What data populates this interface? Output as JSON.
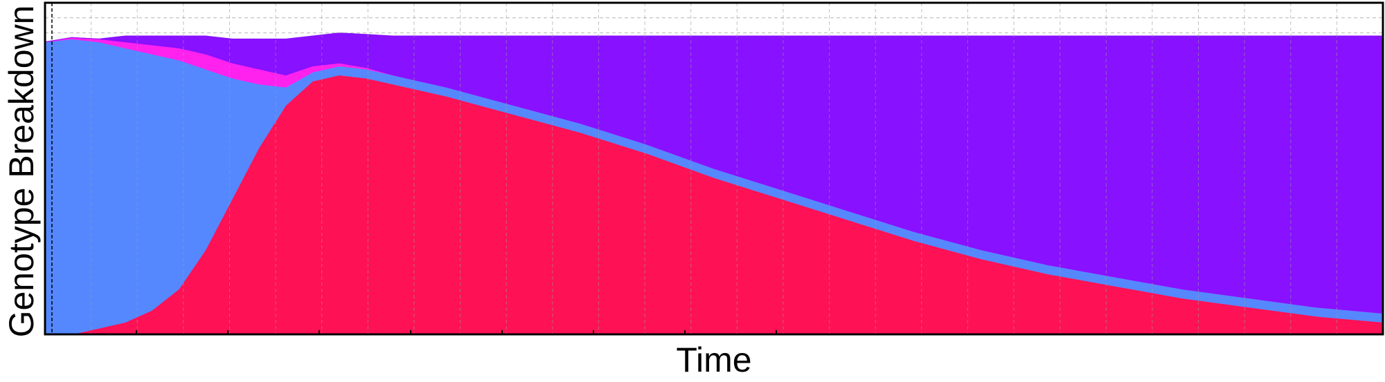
{
  "chart_data": {
    "type": "area",
    "stacked": true,
    "title": "",
    "xlabel": "Time",
    "ylabel": "Genotype Breakdown",
    "x_tick_labels_shown": false,
    "y_tick_labels_shown": false,
    "grid": true,
    "grid_style": "dashed",
    "legend": "none",
    "xlim": [
      0,
      100
    ],
    "ylim": [
      0,
      1.1
    ],
    "x": [
      0,
      2,
      4,
      6,
      8,
      10,
      12,
      14,
      16,
      18,
      20,
      22,
      24,
      26,
      28,
      30,
      35,
      40,
      45,
      50,
      55,
      60,
      65,
      70,
      75,
      80,
      85,
      90,
      95,
      100
    ],
    "series": [
      {
        "color": "#ff1155",
        "values": [
          0.0,
          0.0,
          0.02,
          0.04,
          0.08,
          0.15,
          0.28,
          0.45,
          0.62,
          0.76,
          0.84,
          0.86,
          0.85,
          0.83,
          0.81,
          0.79,
          0.73,
          0.67,
          0.6,
          0.52,
          0.45,
          0.38,
          0.31,
          0.25,
          0.2,
          0.16,
          0.12,
          0.09,
          0.06,
          0.04
        ]
      },
      {
        "color": "#5588ff",
        "values": [
          0.97,
          0.98,
          0.95,
          0.91,
          0.85,
          0.76,
          0.6,
          0.4,
          0.21,
          0.06,
          0.03,
          0.03,
          0.03,
          0.03,
          0.03,
          0.03,
          0.03,
          0.03,
          0.03,
          0.03,
          0.03,
          0.03,
          0.03,
          0.03,
          0.03,
          0.03,
          0.03,
          0.03,
          0.03,
          0.03
        ]
      },
      {
        "color": "#ff22ee",
        "values": [
          0.0,
          0.005,
          0.01,
          0.02,
          0.03,
          0.04,
          0.05,
          0.05,
          0.05,
          0.04,
          0.02,
          0.01,
          0.005,
          0.0,
          0.0,
          0.0,
          0.0,
          0.0,
          0.0,
          0.0,
          0.0,
          0.0,
          0.0,
          0.0,
          0.0,
          0.0,
          0.0,
          0.0,
          0.0,
          0.0
        ]
      },
      {
        "color": "#8811ff",
        "values": [
          0.0,
          0.0,
          0.0,
          0.02,
          0.03,
          0.04,
          0.06,
          0.08,
          0.1,
          0.12,
          0.1,
          0.1,
          0.11,
          0.13,
          0.15,
          0.17,
          0.23,
          0.29,
          0.36,
          0.44,
          0.51,
          0.58,
          0.65,
          0.71,
          0.76,
          0.8,
          0.84,
          0.87,
          0.9,
          0.92
        ]
      }
    ]
  }
}
